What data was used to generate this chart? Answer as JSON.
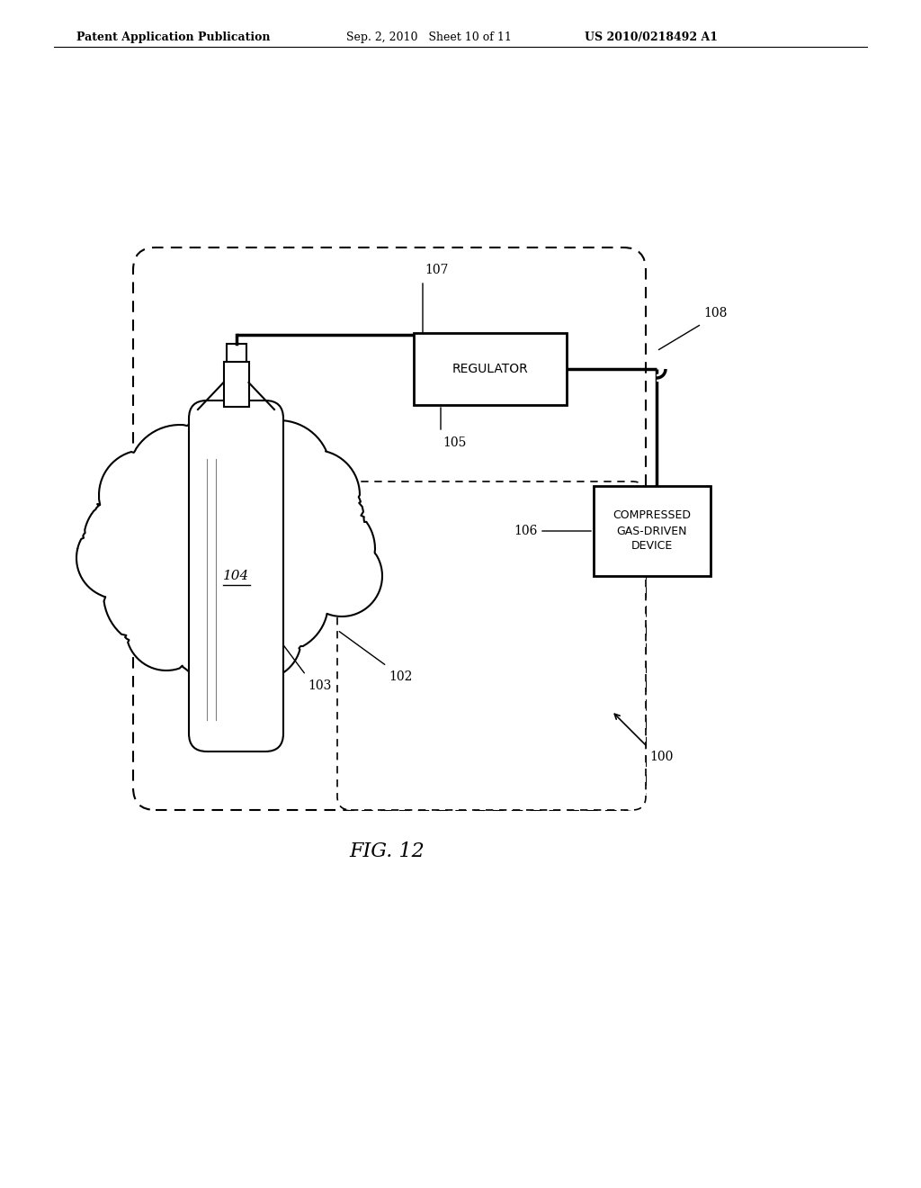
{
  "bg_color": "#ffffff",
  "header_left": "Patent Application Publication",
  "header_mid": "Sep. 2, 2010   Sheet 10 of 11",
  "header_right": "US 2010/0218492 A1",
  "fig_label": "FIG. 12",
  "label_100": "100",
  "label_102": "102",
  "label_103": "103",
  "label_104": "104",
  "label_105": "105",
  "label_106": "106",
  "label_107": "107",
  "label_108": "108",
  "regulator_text": "REGULATOR",
  "device_text": [
    "COMPRESSED",
    "GAS-DRIVEN",
    "DEVICE"
  ]
}
